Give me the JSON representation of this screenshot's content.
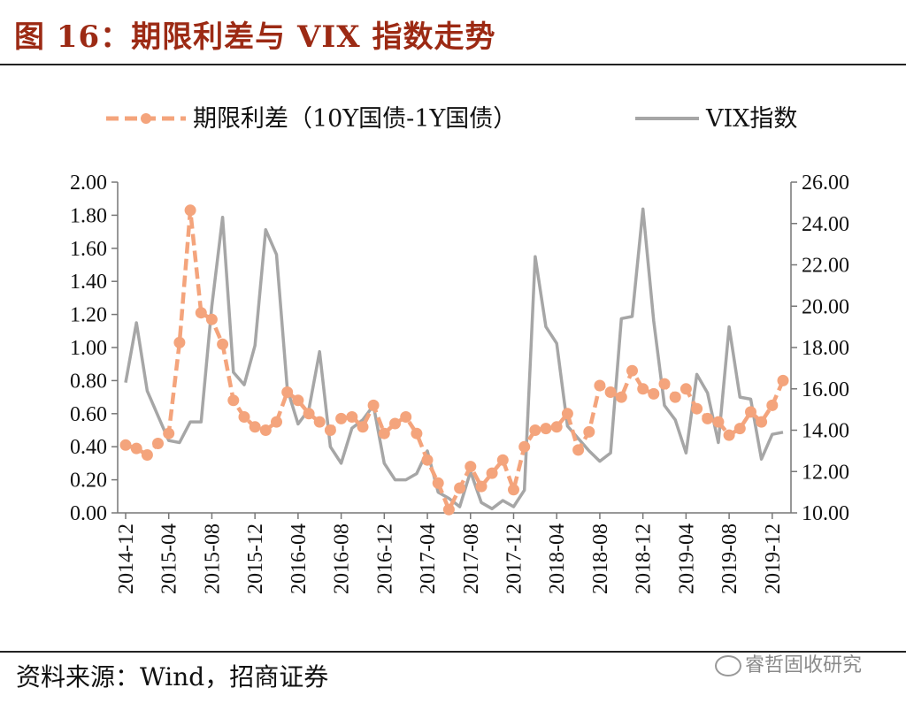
{
  "title": "图 16：期限利差与 VIX 指数走势",
  "source": "资料来源：Wind，招商证券",
  "watermark": "睿哲固收研究",
  "chart_data": {
    "type": "line",
    "x": [
      "2014-12",
      "2015-01",
      "2015-02",
      "2015-03",
      "2015-04",
      "2015-05",
      "2015-06",
      "2015-07",
      "2015-08",
      "2015-09",
      "2015-10",
      "2015-11",
      "2015-12",
      "2016-01",
      "2016-02",
      "2016-03",
      "2016-04",
      "2016-05",
      "2016-06",
      "2016-07",
      "2016-08",
      "2016-09",
      "2016-10",
      "2016-11",
      "2016-12",
      "2017-01",
      "2017-02",
      "2017-03",
      "2017-04",
      "2017-05",
      "2017-06",
      "2017-07",
      "2017-08",
      "2017-09",
      "2017-10",
      "2017-11",
      "2017-12",
      "2018-01",
      "2018-02",
      "2018-03",
      "2018-04",
      "2018-05",
      "2018-06",
      "2018-07",
      "2018-08",
      "2018-09",
      "2018-10",
      "2018-11",
      "2018-12",
      "2019-01",
      "2019-02",
      "2019-03",
      "2019-04",
      "2019-05",
      "2019-06",
      "2019-07",
      "2019-08",
      "2019-09",
      "2019-10",
      "2019-11",
      "2019-12",
      "2020-01"
    ],
    "xticks": [
      "2014-12",
      "2015-04",
      "2015-08",
      "2015-12",
      "2016-04",
      "2016-08",
      "2016-12",
      "2017-04",
      "2017-08",
      "2017-12",
      "2018-04",
      "2018-08",
      "2018-12",
      "2019-04",
      "2019-08",
      "2019-12"
    ],
    "series": [
      {
        "name": "期限利差（10Y国债-1Y国债）",
        "axis": "left",
        "color": "#f4a47c",
        "values": [
          0.41,
          0.39,
          0.35,
          0.42,
          0.48,
          1.03,
          1.83,
          1.21,
          1.17,
          1.02,
          0.68,
          0.58,
          0.52,
          0.5,
          0.55,
          0.73,
          0.68,
          0.6,
          0.55,
          0.5,
          0.57,
          0.58,
          0.52,
          0.65,
          0.48,
          0.54,
          0.58,
          0.48,
          0.32,
          0.18,
          0.02,
          0.15,
          0.28,
          0.16,
          0.24,
          0.32,
          0.14,
          0.4,
          0.5,
          0.51,
          0.52,
          0.6,
          0.38,
          0.49,
          0.77,
          0.73,
          0.7,
          0.86,
          0.75,
          0.72,
          0.78,
          0.7,
          0.75,
          0.63,
          0.57,
          0.55,
          0.47,
          0.51,
          0.61,
          0.55,
          0.65,
          0.8
        ]
      },
      {
        "name": "VIX指数",
        "axis": "right",
        "color": "#a6a6a6",
        "values": [
          16.3,
          19.2,
          15.9,
          14.7,
          13.5,
          13.4,
          14.4,
          14.4,
          20.0,
          24.3,
          16.8,
          16.2,
          18.1,
          23.7,
          22.5,
          16.0,
          14.3,
          15.0,
          17.8,
          13.2,
          12.4,
          14.1,
          14.5,
          15.2,
          12.4,
          11.6,
          11.6,
          11.9,
          13.0,
          11.0,
          10.7,
          10.3,
          12.0,
          10.5,
          10.2,
          10.6,
          10.3,
          11.1,
          22.4,
          19.0,
          18.2,
          14.2,
          13.6,
          13.0,
          12.5,
          12.9,
          19.4,
          19.5,
          24.7,
          19.3,
          15.2,
          14.5,
          12.9,
          16.7,
          15.8,
          13.4,
          19.0,
          15.6,
          15.5,
          12.6,
          13.8,
          13.9
        ]
      }
    ],
    "y_left": {
      "min": 0,
      "max": 2,
      "step": 0.2
    },
    "y_right": {
      "min": 10,
      "max": 26,
      "step": 2
    },
    "legend_position": "top"
  }
}
